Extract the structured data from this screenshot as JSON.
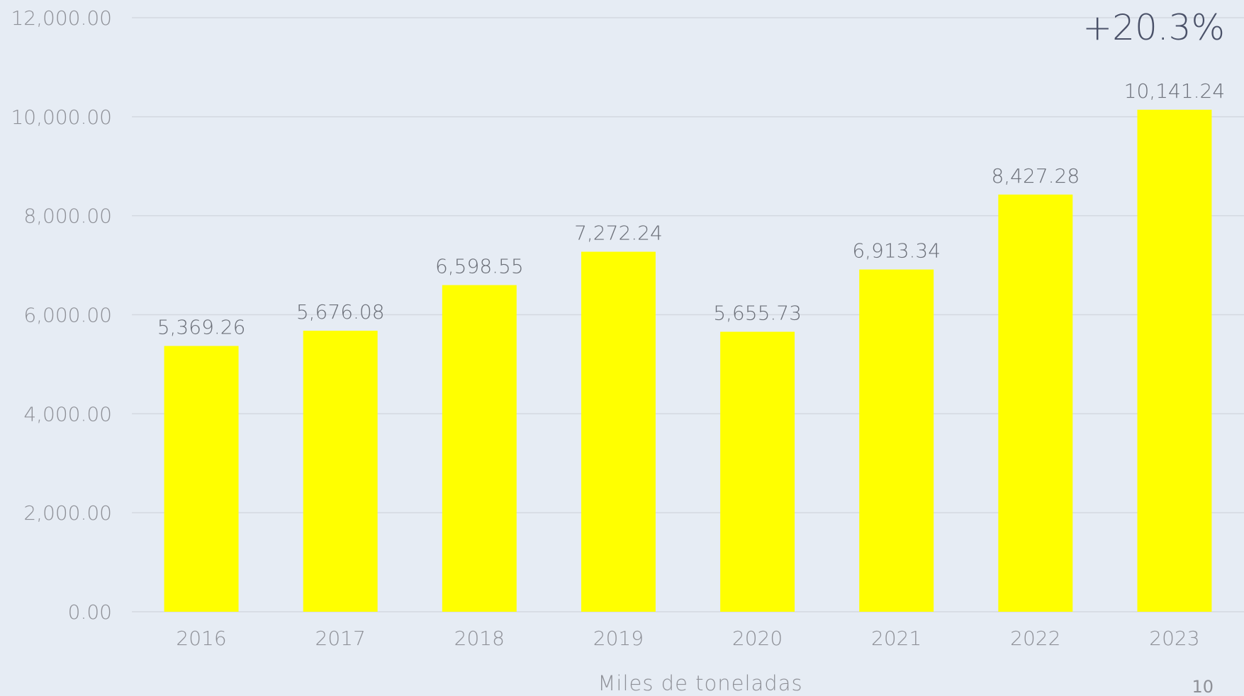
{
  "chart_data": {
    "type": "bar",
    "categories": [
      "2016",
      "2017",
      "2018",
      "2019",
      "2020",
      "2021",
      "2022",
      "2023"
    ],
    "values": [
      5369.26,
      5676.08,
      6598.55,
      7272.24,
      5655.73,
      6913.34,
      8427.28,
      10141.24
    ],
    "value_labels": [
      "5,369.26",
      "5,676.08",
      "6,598.55",
      "7,272.24",
      "5,655.73",
      "6,913.34",
      "8,427.28",
      "10,141.24"
    ],
    "ylim": [
      0,
      12000
    ],
    "yticks": [
      0,
      2000,
      4000,
      6000,
      8000,
      10000,
      12000
    ],
    "ytick_labels": [
      "0.00",
      "2,000.00",
      "4,000.00",
      "6,000.00",
      "8,000.00",
      "10,000.00",
      "12,000.00"
    ],
    "xlabel": "Miles de toneladas",
    "ylabel": "",
    "title": "",
    "grid": true,
    "bar_color": "#ffff00",
    "annotation": "+20.3%"
  },
  "page_number": "10",
  "colors": {
    "background": "#e6ecf4",
    "bar": "#ffff00",
    "grid": "#d3d8e0",
    "tick_text": "#8e9097",
    "data_label_text": "#6b6f78",
    "annotation_text": "#4a5168"
  }
}
